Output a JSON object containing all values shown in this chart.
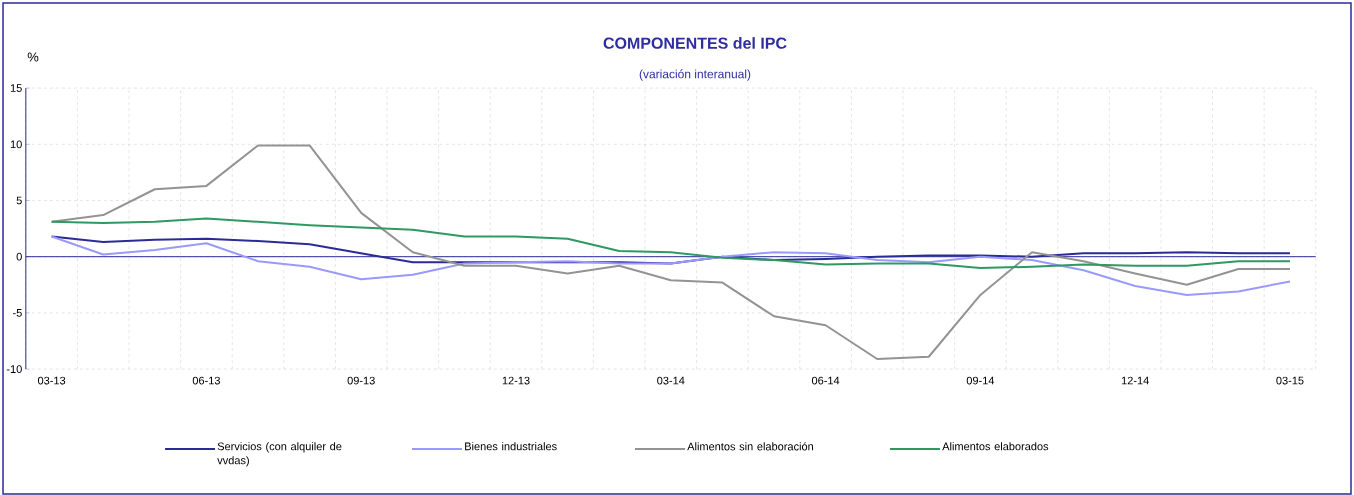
{
  "chart_data": {
    "type": "line",
    "title": "COMPONENTES del IPC",
    "subtitle": "(variación interanual)",
    "ylabel": "%",
    "categories": [
      "03-13",
      null,
      null,
      "06-13",
      null,
      null,
      "09-13",
      null,
      null,
      "12-13",
      null,
      null,
      "03-14",
      null,
      null,
      "06-14",
      null,
      null,
      "09-14",
      null,
      null,
      "12-14",
      null,
      null,
      "03-15"
    ],
    "series": [
      {
        "name": "Servicios (con alquiler de vvdas)",
        "color": "#2b2b96",
        "values": [
          1.8,
          1.3,
          1.5,
          1.6,
          1.4,
          1.1,
          0.3,
          -0.5,
          -0.5,
          -0.5,
          -0.5,
          -0.5,
          -0.6,
          0.0,
          -0.3,
          -0.2,
          0.0,
          0.1,
          0.1,
          0.0,
          0.3,
          0.3,
          0.4,
          0.3,
          0.3
        ]
      },
      {
        "name": "Bienes industriales",
        "color": "#9999ff",
        "values": [
          1.8,
          0.2,
          0.6,
          1.2,
          -0.4,
          -0.9,
          -2.0,
          -1.6,
          -0.6,
          -0.5,
          -0.4,
          -0.6,
          -0.6,
          0.0,
          0.4,
          0.3,
          -0.3,
          -0.5,
          0.0,
          -0.3,
          -1.2,
          -2.6,
          -3.4,
          -3.1,
          -2.2
        ]
      },
      {
        "name": "Alimentos sin elaboración",
        "color": "#939393",
        "values": [
          3.1,
          3.7,
          6.0,
          6.3,
          9.9,
          9.9,
          3.9,
          0.4,
          -0.8,
          -0.8,
          -1.5,
          -0.8,
          -2.1,
          -2.3,
          -5.3,
          -6.1,
          -9.1,
          -8.9,
          -3.4,
          0.4,
          -0.4,
          -1.5,
          -2.5,
          -1.1,
          -1.1
        ]
      },
      {
        "name": "Alimentos elaborados",
        "color": "#2e9960",
        "values": [
          3.1,
          3.0,
          3.1,
          3.4,
          3.1,
          2.8,
          2.6,
          2.4,
          1.8,
          1.8,
          1.6,
          0.5,
          0.4,
          -0.1,
          -0.3,
          -0.7,
          -0.6,
          -0.6,
          -1.0,
          -0.9,
          -0.7,
          -0.8,
          -0.8,
          -0.4,
          -0.4
        ]
      }
    ],
    "ref_lines": [
      {
        "axis": "y",
        "value": 0,
        "color": "#2b2b96"
      }
    ],
    "ylim": [
      -10,
      15
    ],
    "yticks": [
      -10,
      -5,
      0,
      5,
      10,
      15
    ],
    "grid": true,
    "legend": "bottom"
  }
}
